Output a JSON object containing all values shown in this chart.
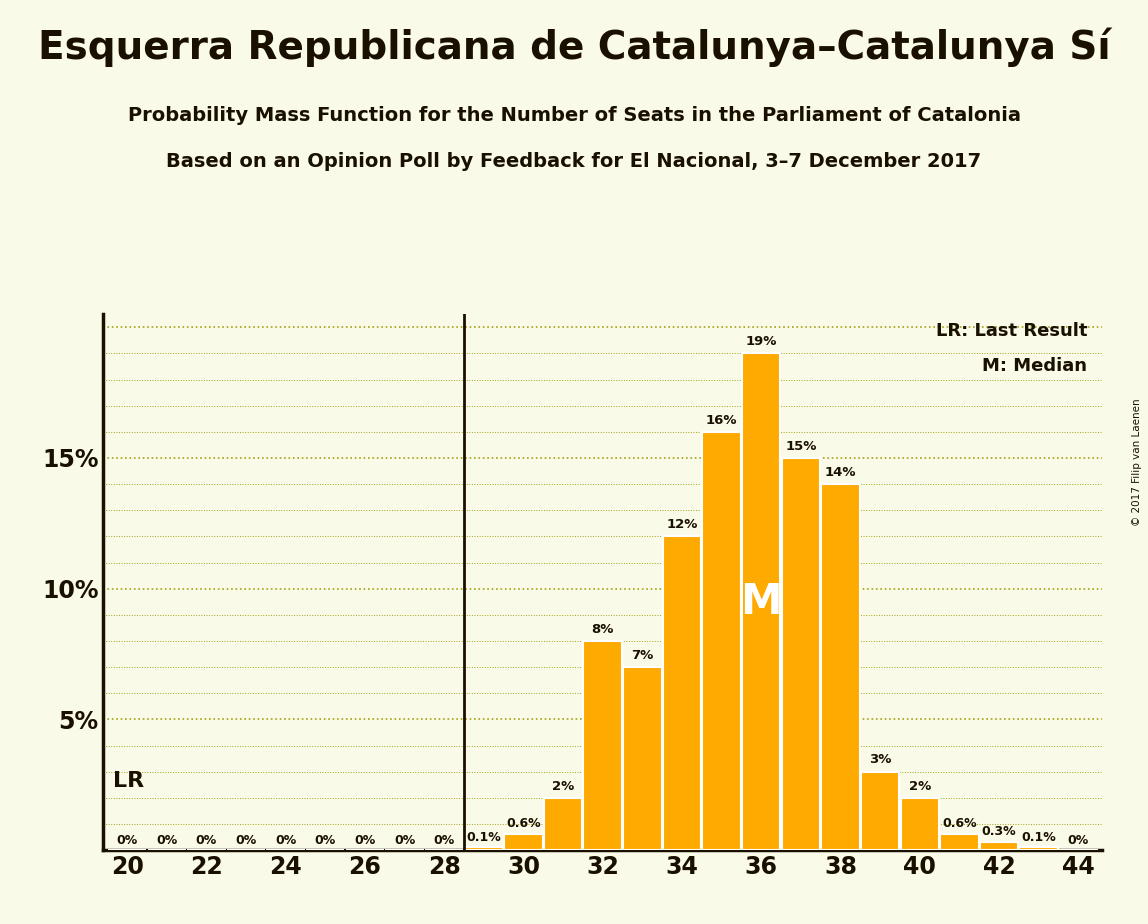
{
  "title": "Esquerra Republicana de Catalunya–Catalunya Sí",
  "subtitle1": "Probability Mass Function for the Number of Seats in the Parliament of Catalonia",
  "subtitle2": "Based on an Opinion Poll by Feedback for El Nacional, 3–7 December 2017",
  "copyright": "© 2017 Filip van Laenen",
  "seats": [
    20,
    21,
    22,
    23,
    24,
    25,
    26,
    27,
    28,
    29,
    30,
    31,
    32,
    33,
    34,
    35,
    36,
    37,
    38,
    39,
    40,
    41,
    42,
    43,
    44
  ],
  "probabilities": [
    0.0,
    0.0,
    0.0,
    0.0,
    0.0,
    0.0,
    0.0,
    0.0,
    0.0,
    0.1,
    0.6,
    2.0,
    8.0,
    7.0,
    12.0,
    16.0,
    19.0,
    15.0,
    14.0,
    3.0,
    2.0,
    0.6,
    0.3,
    0.1,
    0.0
  ],
  "bar_color": "#FFAA00",
  "bar_edge_color": "#FFFFFF",
  "background_color": "#FAFAE8",
  "text_color": "#1a1000",
  "grid_color": "#999900",
  "lr_seat": 29,
  "median_seat": 36,
  "ylim_max": 20.5,
  "yticks": [
    0,
    5,
    10,
    15
  ],
  "ytick_labels": [
    "",
    "5%",
    "10%",
    "15%"
  ],
  "xtick_start": 20,
  "xtick_end": 44,
  "xtick_step": 2,
  "label_fontsize": 9,
  "tick_fontsize": 17,
  "legend_fontsize": 13,
  "title_fontsize": 28,
  "subtitle_fontsize": 14
}
